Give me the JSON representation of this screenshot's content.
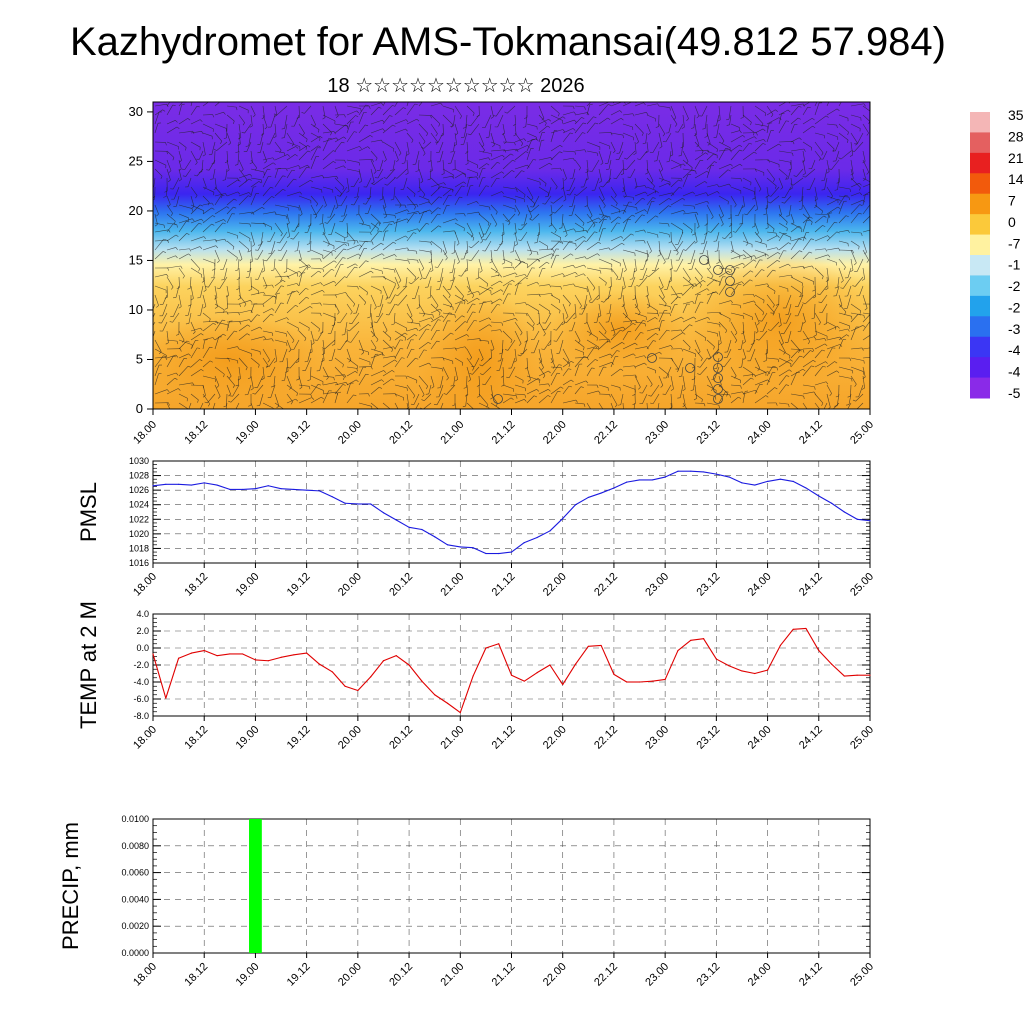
{
  "title": "Kazhydromet for AMS-Tokmansai(49.812 57.984)",
  "subtitle": "18 ☆☆☆☆☆☆☆☆☆☆ 2026",
  "colors": {
    "pressure_line": "#1a1adf",
    "temperature_line": "#e00000",
    "precip_bar": "#00ff00",
    "grid": "#555555"
  },
  "chart_data": [
    {
      "type": "heatmap",
      "name": "upper-air cross-section",
      "x_ticks": [
        "18.00",
        "18.12",
        "19.00",
        "19.12",
        "20.00",
        "20.12",
        "21.00",
        "21.12",
        "22.00",
        "22.12",
        "23.00",
        "23.12",
        "24.00",
        "24.12",
        "25.00"
      ],
      "y_ticks": [
        "0",
        "5",
        "10",
        "15",
        "20",
        "25",
        "30"
      ],
      "ylim": [
        0,
        31
      ],
      "overlay": "wind barbs",
      "colorbar_labels": [
        "35",
        "28",
        "21",
        "14",
        "7",
        "0",
        "-7",
        "-1",
        "-2",
        "-2",
        "-3",
        "-4",
        "-4",
        "-5"
      ],
      "colorbar_colors": [
        "#f4b6b6",
        "#e46060",
        "#e82020",
        "#f25a0c",
        "#f79812",
        "#fbc93a",
        "#fff2a0",
        "#c8e8f4",
        "#6ccdf2",
        "#22a2ec",
        "#2a70f0",
        "#3b36f4",
        "#5a1ef0",
        "#8a2ae8"
      ]
    },
    {
      "type": "line",
      "name": "PMSL",
      "ylabel": "PMSL",
      "x_ticks": [
        "18.00",
        "18.12",
        "19.00",
        "19.12",
        "20.00",
        "20.12",
        "21.00",
        "21.12",
        "22.00",
        "22.12",
        "23.00",
        "23.12",
        "24.00",
        "24.12",
        "25.00"
      ],
      "y_ticks": [
        "1016",
        "1018",
        "1020",
        "1022",
        "1024",
        "1026",
        "1028",
        "1030"
      ],
      "ylim": [
        1016,
        1030
      ],
      "x": [
        0,
        3,
        6,
        9,
        12,
        15,
        18,
        21,
        24,
        27,
        30,
        33,
        36,
        39,
        42,
        45,
        48,
        51,
        54,
        57,
        60,
        63,
        66,
        69,
        72,
        75,
        78,
        81,
        84,
        87,
        90,
        93,
        96,
        99,
        102,
        105,
        108,
        111,
        114,
        117,
        120,
        123,
        126,
        129,
        132,
        135,
        138,
        141,
        144,
        147,
        150,
        153,
        156,
        159,
        162,
        165,
        168
      ],
      "values": [
        1026.6,
        1026.8,
        1026.8,
        1026.7,
        1027.0,
        1026.7,
        1026.1,
        1026.1,
        1026.2,
        1026.6,
        1026.2,
        1026.1,
        1026.0,
        1025.9,
        1025.1,
        1024.2,
        1024.1,
        1024.1,
        1022.9,
        1021.9,
        1020.9,
        1020.6,
        1019.6,
        1018.5,
        1018.2,
        1018.1,
        1017.3,
        1017.3,
        1017.5,
        1018.8,
        1019.5,
        1020.4,
        1022.1,
        1024.0,
        1025.0,
        1025.6,
        1026.3,
        1027.1,
        1027.4,
        1027.4,
        1027.8,
        1028.6,
        1028.6,
        1028.5,
        1028.2,
        1027.8,
        1027.0,
        1026.7,
        1027.2,
        1027.5,
        1027.2,
        1026.3,
        1025.2,
        1024.2,
        1023.0,
        1022.0,
        1021.8
      ]
    },
    {
      "type": "line",
      "name": "TEMP at 2 M",
      "ylabel": "TEMP at 2 M",
      "x_ticks": [
        "18.00",
        "18.12",
        "19.00",
        "19.12",
        "20.00",
        "20.12",
        "21.00",
        "21.12",
        "22.00",
        "22.12",
        "23.00",
        "23.12",
        "24.00",
        "24.12",
        "25.00"
      ],
      "y_ticks": [
        "-8.0",
        "-6.0",
        "-4.0",
        "-2.0",
        "0.0",
        "2.0",
        "4.0"
      ],
      "ylim": [
        -8,
        4
      ],
      "x": [
        0,
        3,
        6,
        9,
        12,
        15,
        18,
        21,
        24,
        27,
        30,
        33,
        36,
        39,
        42,
        45,
        48,
        51,
        54,
        57,
        60,
        63,
        66,
        69,
        72,
        75,
        78,
        81,
        84,
        87,
        90,
        93,
        96,
        99,
        102,
        105,
        108,
        111,
        114,
        117,
        120,
        123,
        126,
        129,
        132,
        135,
        138,
        141,
        144,
        147,
        150,
        153,
        156,
        159,
        162,
        165,
        168
      ],
      "values": [
        -0.7,
        -5.9,
        -1.2,
        -0.6,
        -0.3,
        -0.9,
        -0.7,
        -0.7,
        -1.4,
        -1.5,
        -1.1,
        -0.8,
        -0.6,
        -1.9,
        -2.8,
        -4.5,
        -5.0,
        -3.4,
        -1.5,
        -0.9,
        -2.0,
        -3.9,
        -5.5,
        -6.5,
        -7.6,
        -3.3,
        0.0,
        0.5,
        -3.2,
        -3.9,
        -2.9,
        -2.0,
        -4.3,
        -1.9,
        0.2,
        0.3,
        -3.1,
        -4.0,
        -4.0,
        -3.9,
        -3.7,
        -0.3,
        0.9,
        1.1,
        -1.3,
        -2.1,
        -2.7,
        -3.0,
        -2.6,
        0.3,
        2.2,
        2.3,
        -0.3,
        -1.9,
        -3.3,
        -3.2,
        -3.2
      ]
    },
    {
      "type": "bar",
      "name": "PRECIP, mm",
      "ylabel": "PRECIP, mm",
      "x_ticks": [
        "18.00",
        "18.12",
        "19.00",
        "19.12",
        "20.00",
        "20.12",
        "21.00",
        "21.12",
        "22.00",
        "22.12",
        "23.00",
        "23.12",
        "24.00",
        "24.12",
        "25.00"
      ],
      "y_ticks": [
        "0.0000",
        "0.0020",
        "0.0040",
        "0.0060",
        "0.0080",
        "0.0100"
      ],
      "ylim": [
        0,
        0.01
      ],
      "x": [
        24
      ],
      "values": [
        0.01
      ]
    }
  ]
}
